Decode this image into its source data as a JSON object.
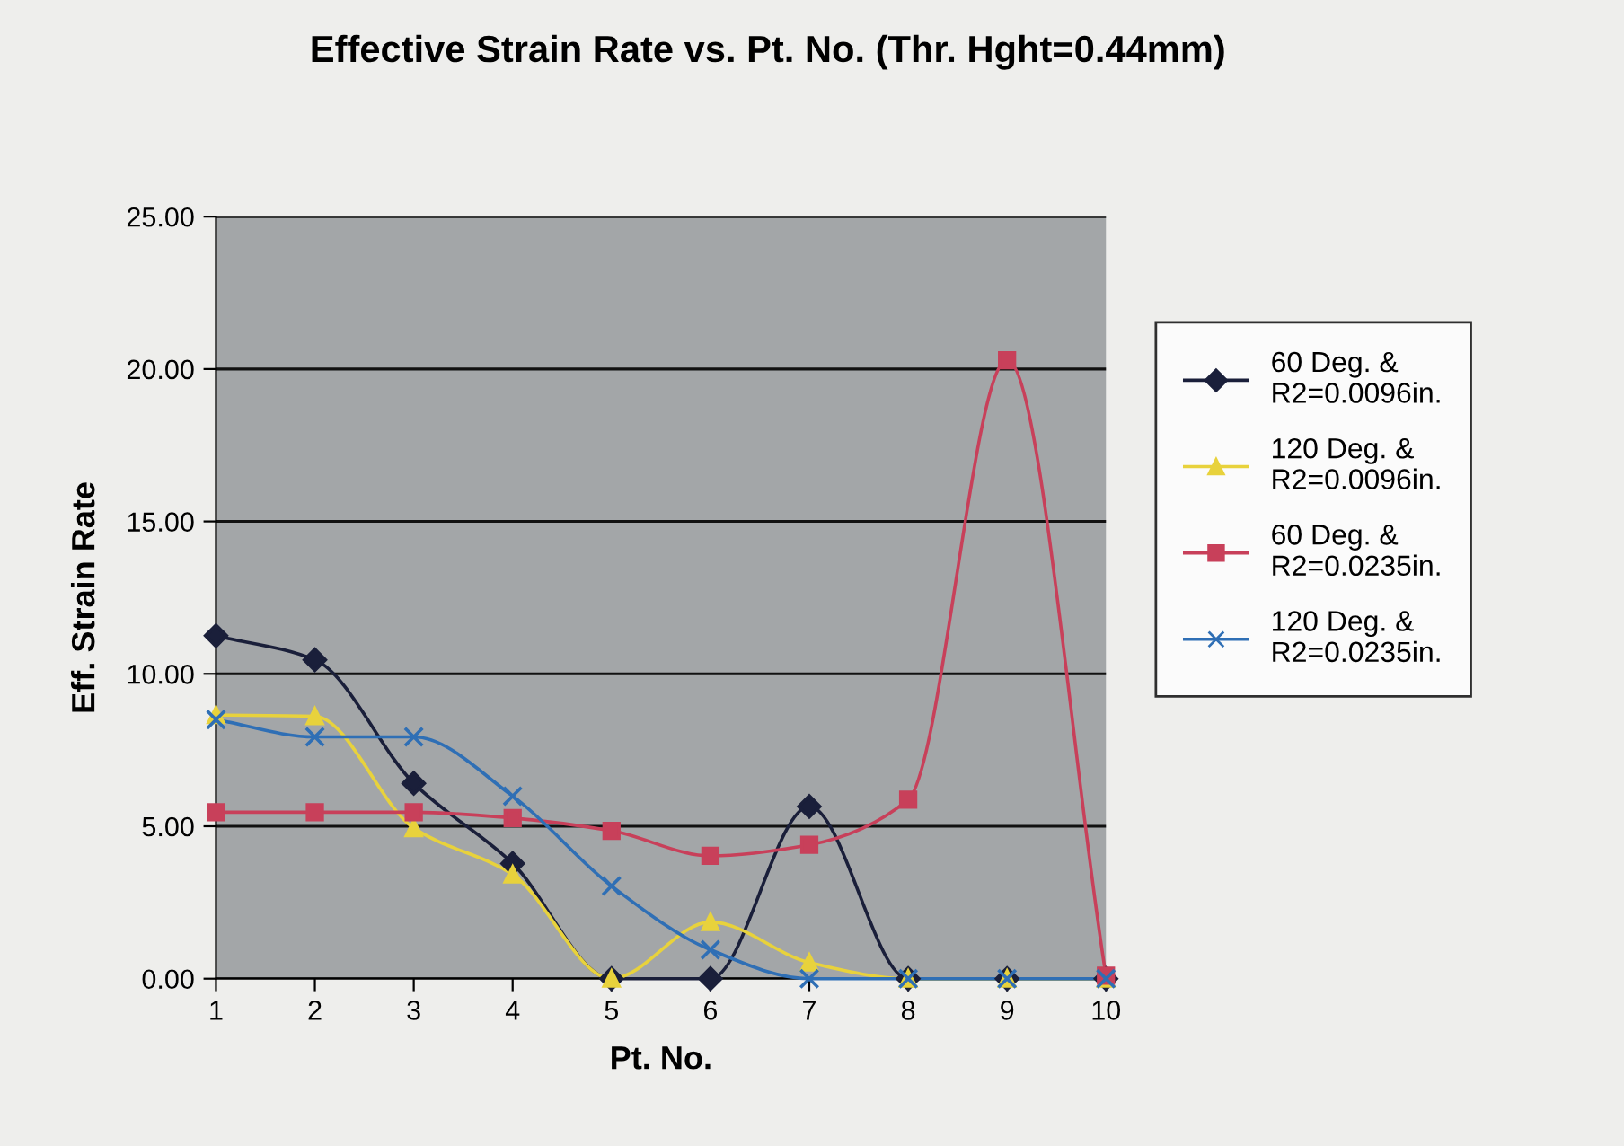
{
  "chart_data": {
    "type": "line",
    "title": "Effective Strain Rate vs. Pt. No. (Thr. Hght=0.44mm)",
    "xlabel": "Pt. No.",
    "ylabel": "Eff. Strain Rate",
    "categories": [
      "1",
      "2",
      "3",
      "4",
      "5",
      "6",
      "7",
      "8",
      "9",
      "10"
    ],
    "series": [
      {
        "name": "60 Deg. &\nR2=0.0096in.",
        "color": "#1a1f3a",
        "marker": "diamond",
        "values": [
          11.25,
          10.46,
          6.41,
          3.78,
          0,
          0,
          5.65,
          0,
          0,
          0
        ]
      },
      {
        "name": "120 Deg. &\nR2=0.0096in.",
        "color": "#e8d23c",
        "marker": "triangle",
        "values": [
          8.65,
          8.61,
          4.94,
          3.42,
          0,
          1.86,
          0.53,
          0,
          0,
          0
        ]
      },
      {
        "name": "60 Deg. &\nR2=0.0235in.",
        "color": "#c8405a",
        "marker": "square",
        "values": [
          5.46,
          5.46,
          5.46,
          5.27,
          4.85,
          4.03,
          4.39,
          5.87,
          20.29,
          0.1
        ]
      },
      {
        "name": "120 Deg. &\nR2=0.0235in.",
        "color": "#2f6fb5",
        "marker": "cross",
        "values": [
          8.5,
          7.93,
          7.93,
          5.99,
          3.04,
          0.95,
          0,
          0,
          0,
          0
        ]
      }
    ],
    "ylim": [
      0,
      25
    ],
    "yticks": [
      {
        "value": 0,
        "label": "0.00"
      },
      {
        "value": 5,
        "label": "5.00"
      },
      {
        "value": 10,
        "label": "10.00"
      },
      {
        "value": 15,
        "label": "15.00"
      },
      {
        "value": 20,
        "label": "20.00"
      },
      {
        "value": 25,
        "label": "25.00"
      }
    ],
    "grid": "y",
    "legend": "right",
    "line_style": "solid"
  }
}
